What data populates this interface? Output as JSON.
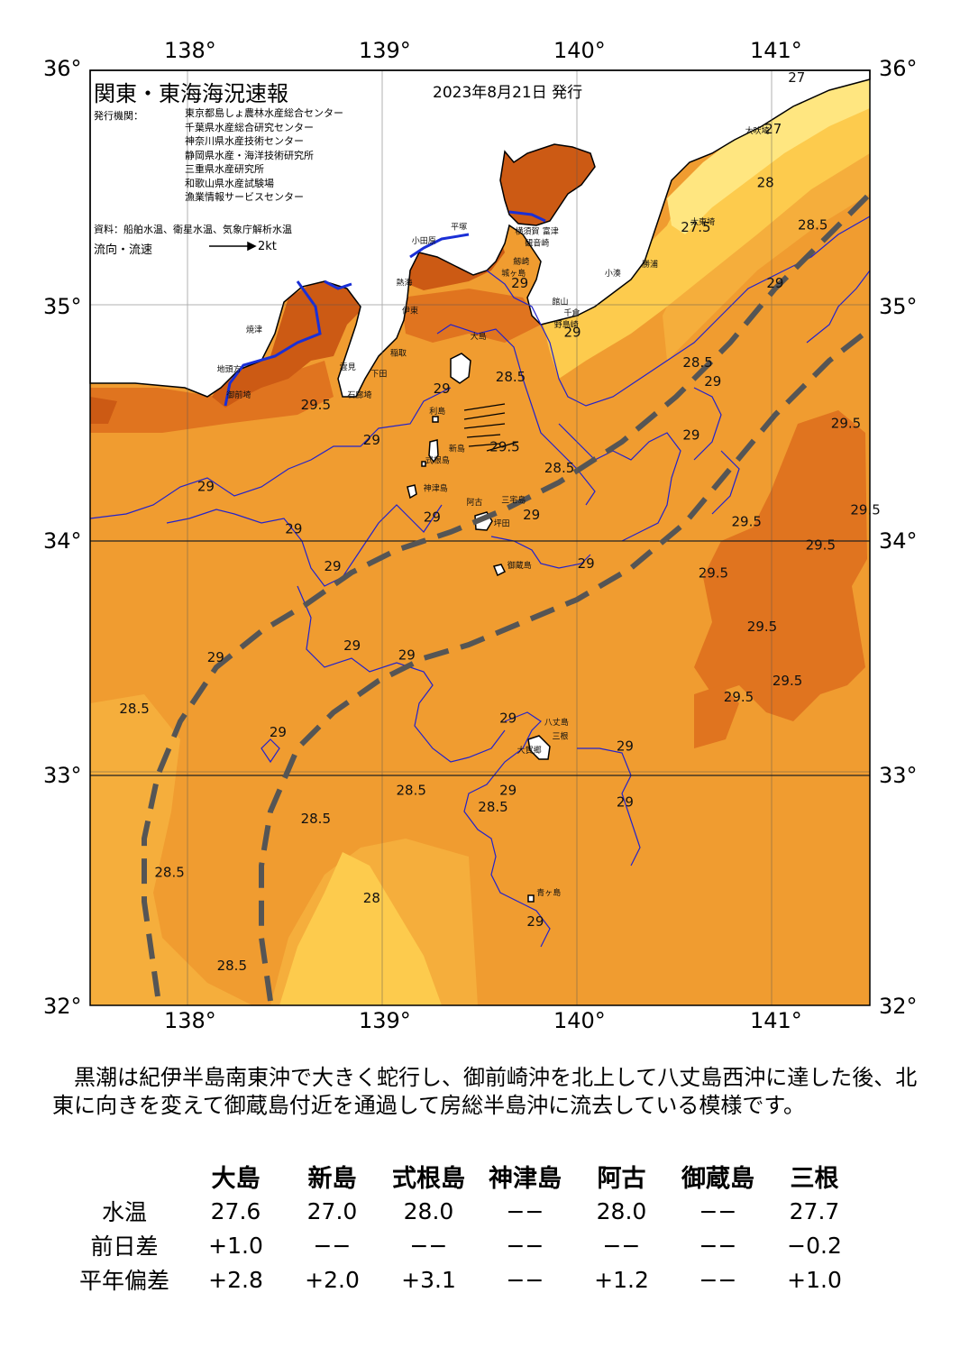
{
  "title": "関東・東海海況速報",
  "issue_date": "2023年8月21日 発行",
  "issuers_label": "発行機関：",
  "issuers": [
    "東京都島しょ農林水産総合センター",
    "千葉県水産総合研究センター",
    "神奈川県水産技術センター",
    "静岡県水産・海洋技術研究所",
    "三重県水産研究所",
    "和歌山県水産試験場",
    "漁業情報サービスセンター"
  ],
  "sources": "資料：船舶水温、衛星水温、気象庁解析水温",
  "flow_legend": {
    "label": "流向・流速",
    "speed": "2kt"
  },
  "axes": {
    "lon_ticks": [
      "138°",
      "139°",
      "140°",
      "141°"
    ],
    "lat_ticks": [
      "36°",
      "35°",
      "34°",
      "33°",
      "32°"
    ],
    "lon_range": [
      137.5,
      141.5
    ],
    "lat_range": [
      32,
      36
    ]
  },
  "place_labels": [
    {
      "name": "大吠埼",
      "lon": 140.86,
      "lat": 35.73
    },
    {
      "name": "太東埼",
      "lon": 140.58,
      "lat": 35.34
    },
    {
      "name": "勝浦",
      "lon": 140.33,
      "lat": 35.16
    },
    {
      "name": "小湊",
      "lon": 140.14,
      "lat": 35.12
    },
    {
      "name": "富津",
      "lon": 139.82,
      "lat": 35.3
    },
    {
      "name": "館山",
      "lon": 139.87,
      "lat": 35.0
    },
    {
      "name": "千倉",
      "lon": 139.93,
      "lat": 34.95
    },
    {
      "name": "野島崎",
      "lon": 139.88,
      "lat": 34.9
    },
    {
      "name": "横須賀",
      "lon": 139.68,
      "lat": 35.3
    },
    {
      "name": "観音崎",
      "lon": 139.73,
      "lat": 35.25
    },
    {
      "name": "劔崎",
      "lon": 139.67,
      "lat": 35.17
    },
    {
      "name": "城ヶ島",
      "lon": 139.61,
      "lat": 35.12
    },
    {
      "name": "平塚",
      "lon": 139.35,
      "lat": 35.32
    },
    {
      "name": "小田原",
      "lon": 139.15,
      "lat": 35.26
    },
    {
      "name": "熱海",
      "lon": 139.07,
      "lat": 35.08
    },
    {
      "name": "伊東",
      "lon": 139.1,
      "lat": 34.96
    },
    {
      "name": "稲取",
      "lon": 139.04,
      "lat": 34.78
    },
    {
      "name": "下田",
      "lon": 138.94,
      "lat": 34.69
    },
    {
      "name": "雲見",
      "lon": 138.78,
      "lat": 34.72
    },
    {
      "name": "石廊埼",
      "lon": 138.82,
      "lat": 34.6
    },
    {
      "name": "焼津",
      "lon": 138.3,
      "lat": 34.88
    },
    {
      "name": "地頭方",
      "lon": 138.15,
      "lat": 34.71
    },
    {
      "name": "御前埼",
      "lon": 138.2,
      "lat": 34.6
    },
    {
      "name": "大島",
      "lon": 139.45,
      "lat": 34.85
    },
    {
      "name": "利島",
      "lon": 139.24,
      "lat": 34.53
    },
    {
      "name": "新島",
      "lon": 139.34,
      "lat": 34.37
    },
    {
      "name": "式根島",
      "lon": 139.22,
      "lat": 34.32
    },
    {
      "name": "神津島",
      "lon": 139.21,
      "lat": 34.2
    },
    {
      "name": "阿古",
      "lon": 139.43,
      "lat": 34.14
    },
    {
      "name": "三宅島",
      "lon": 139.61,
      "lat": 34.15
    },
    {
      "name": "坪田",
      "lon": 139.57,
      "lat": 34.05
    },
    {
      "name": "御蔵島",
      "lon": 139.64,
      "lat": 33.87
    },
    {
      "name": "八丈島",
      "lon": 139.83,
      "lat": 33.2
    },
    {
      "name": "三根",
      "lon": 139.87,
      "lat": 33.14
    },
    {
      "name": "大賀郷",
      "lon": 139.69,
      "lat": 33.08
    },
    {
      "name": "青ヶ島",
      "lon": 139.79,
      "lat": 32.47
    }
  ],
  "contour_labels": [
    {
      "v": "27",
      "lon": 141.08,
      "lat": 35.95
    },
    {
      "v": "27",
      "lon": 140.96,
      "lat": 35.73
    },
    {
      "v": "28",
      "lon": 140.92,
      "lat": 35.5
    },
    {
      "v": "27.5",
      "lon": 140.53,
      "lat": 35.31
    },
    {
      "v": "28.5",
      "lon": 141.13,
      "lat": 35.32
    },
    {
      "v": "29",
      "lon": 140.97,
      "lat": 35.07
    },
    {
      "v": "29",
      "lon": 139.66,
      "lat": 35.07
    },
    {
      "v": "29",
      "lon": 139.93,
      "lat": 34.86
    },
    {
      "v": "28.5",
      "lon": 139.58,
      "lat": 34.67
    },
    {
      "v": "29",
      "lon": 139.26,
      "lat": 34.62
    },
    {
      "v": "29.5",
      "lon": 138.58,
      "lat": 34.55
    },
    {
      "v": "29.5",
      "lon": 139.55,
      "lat": 34.37
    },
    {
      "v": "28.5",
      "lon": 139.83,
      "lat": 34.28
    },
    {
      "v": "28.5",
      "lon": 140.54,
      "lat": 34.73
    },
    {
      "v": "29",
      "lon": 140.65,
      "lat": 34.65
    },
    {
      "v": "29",
      "lon": 140.54,
      "lat": 34.42
    },
    {
      "v": "29",
      "lon": 138.9,
      "lat": 34.4
    },
    {
      "v": "29",
      "lon": 138.05,
      "lat": 34.2
    },
    {
      "v": "29",
      "lon": 138.5,
      "lat": 34.02
    },
    {
      "v": "29",
      "lon": 139.21,
      "lat": 34.07
    },
    {
      "v": "29",
      "lon": 139.72,
      "lat": 34.08
    },
    {
      "v": "29",
      "lon": 140.0,
      "lat": 33.87
    },
    {
      "v": "29",
      "lon": 138.7,
      "lat": 33.86
    },
    {
      "v": "29.5",
      "lon": 141.3,
      "lat": 34.47
    },
    {
      "v": "29.5",
      "lon": 141.4,
      "lat": 34.1
    },
    {
      "v": "29.5",
      "lon": 140.79,
      "lat": 34.05
    },
    {
      "v": "29.5",
      "lon": 141.17,
      "lat": 33.95
    },
    {
      "v": "29.5",
      "lon": 140.62,
      "lat": 33.83
    },
    {
      "v": "29.5",
      "lon": 140.87,
      "lat": 33.6
    },
    {
      "v": "29.5",
      "lon": 141.0,
      "lat": 33.37
    },
    {
      "v": "29.5",
      "lon": 140.75,
      "lat": 33.3
    },
    {
      "v": "29",
      "lon": 138.8,
      "lat": 33.52
    },
    {
      "v": "29",
      "lon": 138.1,
      "lat": 33.47
    },
    {
      "v": "29",
      "lon": 139.08,
      "lat": 33.48
    },
    {
      "v": "28.5",
      "lon": 137.65,
      "lat": 33.25
    },
    {
      "v": "29",
      "lon": 138.42,
      "lat": 33.15
    },
    {
      "v": "29",
      "lon": 139.6,
      "lat": 33.21
    },
    {
      "v": "29",
      "lon": 140.2,
      "lat": 33.09
    },
    {
      "v": "29",
      "lon": 140.2,
      "lat": 32.85
    },
    {
      "v": "29",
      "lon": 139.6,
      "lat": 32.9
    },
    {
      "v": "28.5",
      "lon": 139.49,
      "lat": 32.83
    },
    {
      "v": "28.5",
      "lon": 139.07,
      "lat": 32.9
    },
    {
      "v": "28.5",
      "lon": 138.58,
      "lat": 32.78
    },
    {
      "v": "28.5",
      "lon": 137.83,
      "lat": 32.55
    },
    {
      "v": "28",
      "lon": 138.9,
      "lat": 32.44
    },
    {
      "v": "29",
      "lon": 139.74,
      "lat": 32.34
    },
    {
      "v": "28.5",
      "lon": 138.15,
      "lat": 32.15
    }
  ],
  "description": "黒潮は紀伊半島南東沖で大きく蛇行し、御前崎沖を北上して八丈島西沖に達した後、北東に向きを変えて御蔵島付近を通過して房総半島沖に流去している模様です。",
  "table": {
    "stations": [
      "大島",
      "新島",
      "式根島",
      "神津島",
      "阿古",
      "御蔵島",
      "三根"
    ],
    "rows": [
      {
        "label": "水温",
        "values": [
          "27.6",
          "27.0",
          "28.0",
          "−−",
          "28.0",
          "−−",
          "27.7"
        ]
      },
      {
        "label": "前日差",
        "values": [
          "+1.0",
          "−−",
          "−−",
          "−−",
          "−−",
          "−−",
          "−0.2"
        ]
      },
      {
        "label": "平年偏差",
        "values": [
          "+2.8",
          "+2.0",
          "+3.1",
          "−−",
          "+1.2",
          "−−",
          "+1.0"
        ]
      }
    ]
  },
  "colors": {
    "t_27": "#ffe680",
    "t_28": "#fdcb4d",
    "t_28_5": "#f5ae3c",
    "t_29": "#f09c30",
    "t_29_5": "#e0741f",
    "t_30": "#cc5a14",
    "land": "#ffffff",
    "coast": "#000000",
    "contour": "#2222cc",
    "kuroshio": "#555555"
  }
}
